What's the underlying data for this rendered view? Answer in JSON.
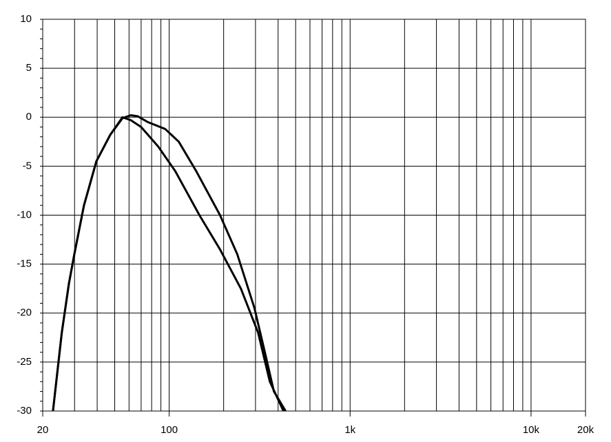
{
  "chart_data": {
    "type": "line",
    "xscale": "log",
    "grid": true,
    "xlim": [
      20,
      20000
    ],
    "ylim": [
      -30,
      10
    ],
    "xticks": [
      20,
      100,
      {
        "value": 1000,
        "label": "1k"
      },
      {
        "value": 10000,
        "label": "10k"
      },
      {
        "value": 20000,
        "label": "20k"
      }
    ],
    "xgrid": [
      30,
      40,
      50,
      60,
      70,
      80,
      90,
      100,
      200,
      300,
      400,
      500,
      600,
      700,
      800,
      900,
      1000,
      2000,
      3000,
      4000,
      5000,
      6000,
      7000,
      8000,
      9000,
      10000
    ],
    "yticks": [
      10,
      5,
      0,
      -5,
      -10,
      -15,
      -20,
      -25,
      -30
    ],
    "series": [
      {
        "color": "#000000",
        "x": [
          22.8,
          25.5,
          27.9,
          29.9,
          33.8,
          39.6,
          47.2,
          55.2,
          61.3,
          67,
          76.3,
          95,
          113,
          141,
          191,
          238,
          296,
          338,
          379,
          440
        ],
        "values": [
          -30,
          -22,
          -17,
          -14,
          -9,
          -4.5,
          -1.8,
          -0.1,
          0.2,
          0.1,
          -0.5,
          -1.2,
          -2.5,
          -5.5,
          -10,
          -14,
          -19.5,
          -24,
          -28,
          -30
        ]
      },
      {
        "color": "#000000",
        "x": [
          22.8,
          25.5,
          27.9,
          29.9,
          33.8,
          39.6,
          47.2,
          55.2,
          61.3,
          70,
          87,
          108,
          147,
          191,
          249,
          310,
          360,
          428
        ],
        "values": [
          -30,
          -22,
          -17,
          -14,
          -9,
          -4.5,
          -1.8,
          0,
          -0.3,
          -1,
          -3,
          -5.5,
          -10,
          -13.5,
          -17.5,
          -22,
          -27,
          -30
        ]
      }
    ]
  }
}
